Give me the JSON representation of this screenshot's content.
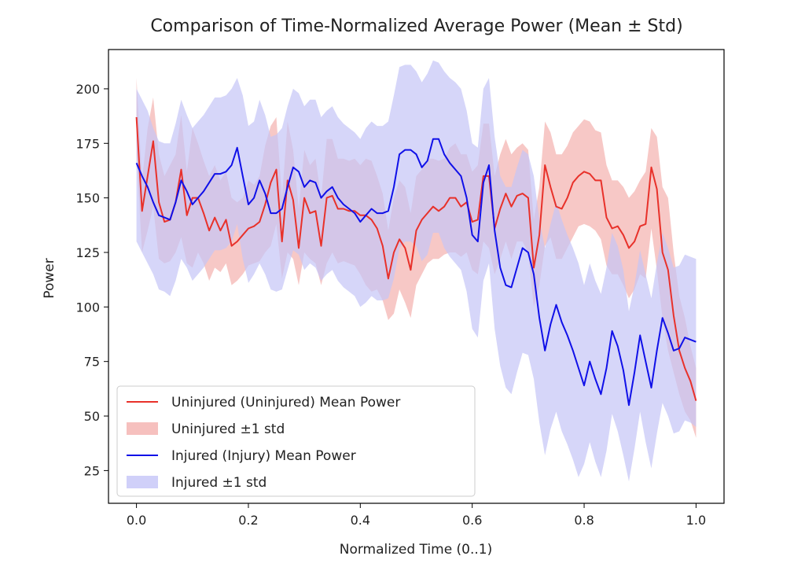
{
  "chart_data": {
    "type": "line",
    "title": "Comparison of Time-Normalized Average Power (Mean ± Std)",
    "xlabel": "Normalized Time (0..1)",
    "ylabel": "Power",
    "xlim": [
      -0.05,
      1.05
    ],
    "ylim": [
      10,
      218
    ],
    "xticks": [
      0.0,
      0.2,
      0.4,
      0.6,
      0.8,
      1.0
    ],
    "xtick_labels": [
      "0.0",
      "0.2",
      "0.4",
      "0.6",
      "0.8",
      "1.0"
    ],
    "yticks": [
      25,
      50,
      75,
      100,
      125,
      150,
      175,
      200
    ],
    "ytick_labels": [
      "25",
      "50",
      "75",
      "100",
      "125",
      "150",
      "175",
      "200"
    ],
    "grid": false,
    "legend_position": "lower-left",
    "series": [
      {
        "name": "Uninjured (Uninjured) Mean Power",
        "band_name": "Uninjured ±1 std",
        "color": "#e8312a",
        "band_color": "#f4b0ae",
        "x": [
          0.0,
          0.01,
          0.02,
          0.03,
          0.04,
          0.05,
          0.06,
          0.07,
          0.08,
          0.09,
          0.1,
          0.11,
          0.12,
          0.13,
          0.14,
          0.15,
          0.16,
          0.17,
          0.18,
          0.19,
          0.2,
          0.21,
          0.22,
          0.23,
          0.24,
          0.25,
          0.26,
          0.27,
          0.28,
          0.29,
          0.3,
          0.31,
          0.32,
          0.33,
          0.34,
          0.35,
          0.36,
          0.37,
          0.38,
          0.39,
          0.4,
          0.41,
          0.42,
          0.43,
          0.44,
          0.45,
          0.46,
          0.47,
          0.48,
          0.49,
          0.5,
          0.51,
          0.52,
          0.53,
          0.54,
          0.55,
          0.56,
          0.57,
          0.58,
          0.59,
          0.6,
          0.61,
          0.62,
          0.63,
          0.64,
          0.65,
          0.66,
          0.67,
          0.68,
          0.69,
          0.7,
          0.71,
          0.72,
          0.73,
          0.74,
          0.75,
          0.76,
          0.77,
          0.78,
          0.79,
          0.8,
          0.81,
          0.82,
          0.83,
          0.84,
          0.85,
          0.86,
          0.87,
          0.88,
          0.89,
          0.9,
          0.91,
          0.92,
          0.93,
          0.94,
          0.95,
          0.96,
          0.97,
          0.98,
          0.99,
          1.0
        ],
        "mean": [
          187,
          144,
          160,
          176,
          148,
          139,
          140,
          148,
          163,
          142,
          150,
          150,
          143,
          135,
          141,
          135,
          140,
          128,
          130,
          133,
          136,
          137,
          139,
          147,
          157,
          163,
          130,
          158,
          149,
          127,
          150,
          143,
          144,
          128,
          150,
          151,
          145,
          145,
          144,
          144,
          142,
          142,
          140,
          136,
          128,
          113,
          125,
          131,
          127,
          117,
          135,
          140,
          143,
          146,
          144,
          146,
          150,
          150,
          146,
          148,
          139,
          140,
          160,
          160,
          136,
          145,
          152,
          146,
          151,
          152,
          150,
          118,
          133,
          165,
          155,
          146,
          145,
          150,
          157,
          160,
          162,
          161,
          158,
          158,
          141,
          136,
          137,
          133,
          127,
          130,
          137,
          138,
          164,
          154,
          125,
          117,
          96,
          80,
          72,
          66,
          57
        ],
        "lower": [
          170,
          125,
          135,
          146,
          122,
          120,
          121,
          125,
          132,
          120,
          118,
          125,
          120,
          112,
          118,
          116,
          120,
          110,
          112,
          115,
          119,
          120,
          121,
          125,
          128,
          138,
          113,
          125,
          122,
          110,
          125,
          122,
          120,
          110,
          120,
          125,
          120,
          121,
          120,
          119,
          115,
          110,
          107,
          108,
          103,
          94,
          97,
          108,
          102,
          95,
          110,
          115,
          120,
          122,
          122,
          124,
          125,
          125,
          123,
          125,
          117,
          115,
          130,
          127,
          115,
          122,
          130,
          122,
          130,
          130,
          125,
          100,
          110,
          128,
          132,
          122,
          122,
          127,
          132,
          137,
          138,
          137,
          135,
          131,
          119,
          115,
          115,
          110,
          104,
          108,
          115,
          113,
          136,
          117,
          95,
          80,
          70,
          60,
          52,
          48,
          40
        ],
        "upper": [
          205,
          158,
          182,
          196,
          170,
          160,
          165,
          170,
          188,
          162,
          182,
          175,
          167,
          160,
          165,
          158,
          162,
          150,
          148,
          150,
          158,
          156,
          160,
          174,
          183,
          187,
          150,
          185,
          172,
          145,
          172,
          165,
          168,
          150,
          177,
          177,
          168,
          168,
          167,
          168,
          165,
          168,
          167,
          160,
          152,
          135,
          150,
          158,
          155,
          143,
          160,
          163,
          168,
          168,
          167,
          168,
          173,
          175,
          170,
          170,
          162,
          165,
          184,
          184,
          160,
          170,
          177,
          170,
          173,
          175,
          172,
          140,
          155,
          185,
          180,
          170,
          170,
          174,
          180,
          183,
          186,
          185,
          181,
          180,
          165,
          158,
          158,
          155,
          150,
          153,
          158,
          162,
          182,
          178,
          155,
          150,
          125,
          105,
          95,
          82,
          72
        ]
      },
      {
        "name": "Injured (Injury) Mean Power",
        "band_name": "Injured ±1 std",
        "color": "#1010e8",
        "band_color": "#c4c4f7",
        "x": [
          0.0,
          0.01,
          0.02,
          0.03,
          0.04,
          0.05,
          0.06,
          0.07,
          0.08,
          0.09,
          0.1,
          0.11,
          0.12,
          0.13,
          0.14,
          0.15,
          0.16,
          0.17,
          0.18,
          0.19,
          0.2,
          0.21,
          0.22,
          0.23,
          0.24,
          0.25,
          0.26,
          0.27,
          0.28,
          0.29,
          0.3,
          0.31,
          0.32,
          0.33,
          0.34,
          0.35,
          0.36,
          0.37,
          0.38,
          0.39,
          0.4,
          0.41,
          0.42,
          0.43,
          0.44,
          0.45,
          0.46,
          0.47,
          0.48,
          0.49,
          0.5,
          0.51,
          0.52,
          0.53,
          0.54,
          0.55,
          0.56,
          0.57,
          0.58,
          0.59,
          0.6,
          0.61,
          0.62,
          0.63,
          0.64,
          0.65,
          0.66,
          0.67,
          0.68,
          0.69,
          0.7,
          0.71,
          0.72,
          0.73,
          0.74,
          0.75,
          0.76,
          0.77,
          0.78,
          0.79,
          0.8,
          0.81,
          0.82,
          0.83,
          0.84,
          0.85,
          0.86,
          0.87,
          0.88,
          0.89,
          0.9,
          0.91,
          0.92,
          0.93,
          0.94,
          0.95,
          0.96,
          0.97,
          0.98,
          0.99,
          1.0
        ],
        "mean": [
          166,
          160,
          155,
          148,
          142,
          141,
          140,
          148,
          158,
          153,
          147,
          150,
          153,
          157,
          161,
          161,
          162,
          165,
          173,
          160,
          147,
          150,
          158,
          152,
          143,
          143,
          145,
          155,
          164,
          162,
          155,
          158,
          157,
          150,
          153,
          155,
          150,
          147,
          145,
          143,
          139,
          142,
          145,
          143,
          143,
          144,
          155,
          170,
          172,
          172,
          170,
          164,
          167,
          177,
          177,
          170,
          166,
          163,
          160,
          150,
          133,
          130,
          157,
          165,
          135,
          118,
          110,
          109,
          118,
          127,
          125,
          115,
          95,
          80,
          92,
          101,
          93,
          87,
          80,
          72,
          64,
          75,
          67,
          60,
          72,
          89,
          82,
          71,
          55,
          70,
          87,
          75,
          63,
          80,
          95,
          88,
          80,
          81,
          86,
          85,
          84
        ],
        "lower": [
          130,
          125,
          120,
          115,
          108,
          107,
          105,
          112,
          122,
          118,
          112,
          115,
          118,
          122,
          126,
          126,
          127,
          130,
          138,
          122,
          111,
          115,
          120,
          115,
          108,
          107,
          108,
          117,
          126,
          124,
          117,
          120,
          118,
          112,
          115,
          117,
          112,
          109,
          107,
          105,
          100,
          102,
          105,
          103,
          103,
          104,
          113,
          127,
          130,
          130,
          128,
          121,
          124,
          134,
          134,
          127,
          123,
          120,
          117,
          107,
          90,
          86,
          112,
          120,
          90,
          73,
          63,
          60,
          70,
          79,
          78,
          67,
          47,
          32,
          44,
          52,
          43,
          37,
          30,
          22,
          28,
          38,
          29,
          22,
          34,
          51,
          43,
          32,
          20,
          35,
          52,
          38,
          26,
          42,
          56,
          50,
          42,
          43,
          48,
          47,
          45
        ],
        "upper": [
          200,
          195,
          190,
          182,
          176,
          175,
          175,
          184,
          195,
          188,
          182,
          185,
          188,
          192,
          196,
          196,
          197,
          200,
          205,
          197,
          183,
          185,
          195,
          188,
          178,
          179,
          182,
          192,
          200,
          198,
          192,
          195,
          195,
          187,
          190,
          192,
          187,
          184,
          182,
          180,
          177,
          182,
          185,
          183,
          183,
          185,
          197,
          210,
          211,
          211,
          208,
          203,
          207,
          213,
          212,
          208,
          205,
          203,
          200,
          190,
          175,
          173,
          200,
          205,
          178,
          160,
          155,
          155,
          164,
          172,
          170,
          160,
          140,
          127,
          138,
          148,
          140,
          133,
          127,
          120,
          110,
          120,
          112,
          106,
          118,
          134,
          128,
          117,
          98,
          110,
          126,
          115,
          104,
          120,
          134,
          127,
          118,
          119,
          124,
          123,
          122
        ]
      }
    ]
  }
}
